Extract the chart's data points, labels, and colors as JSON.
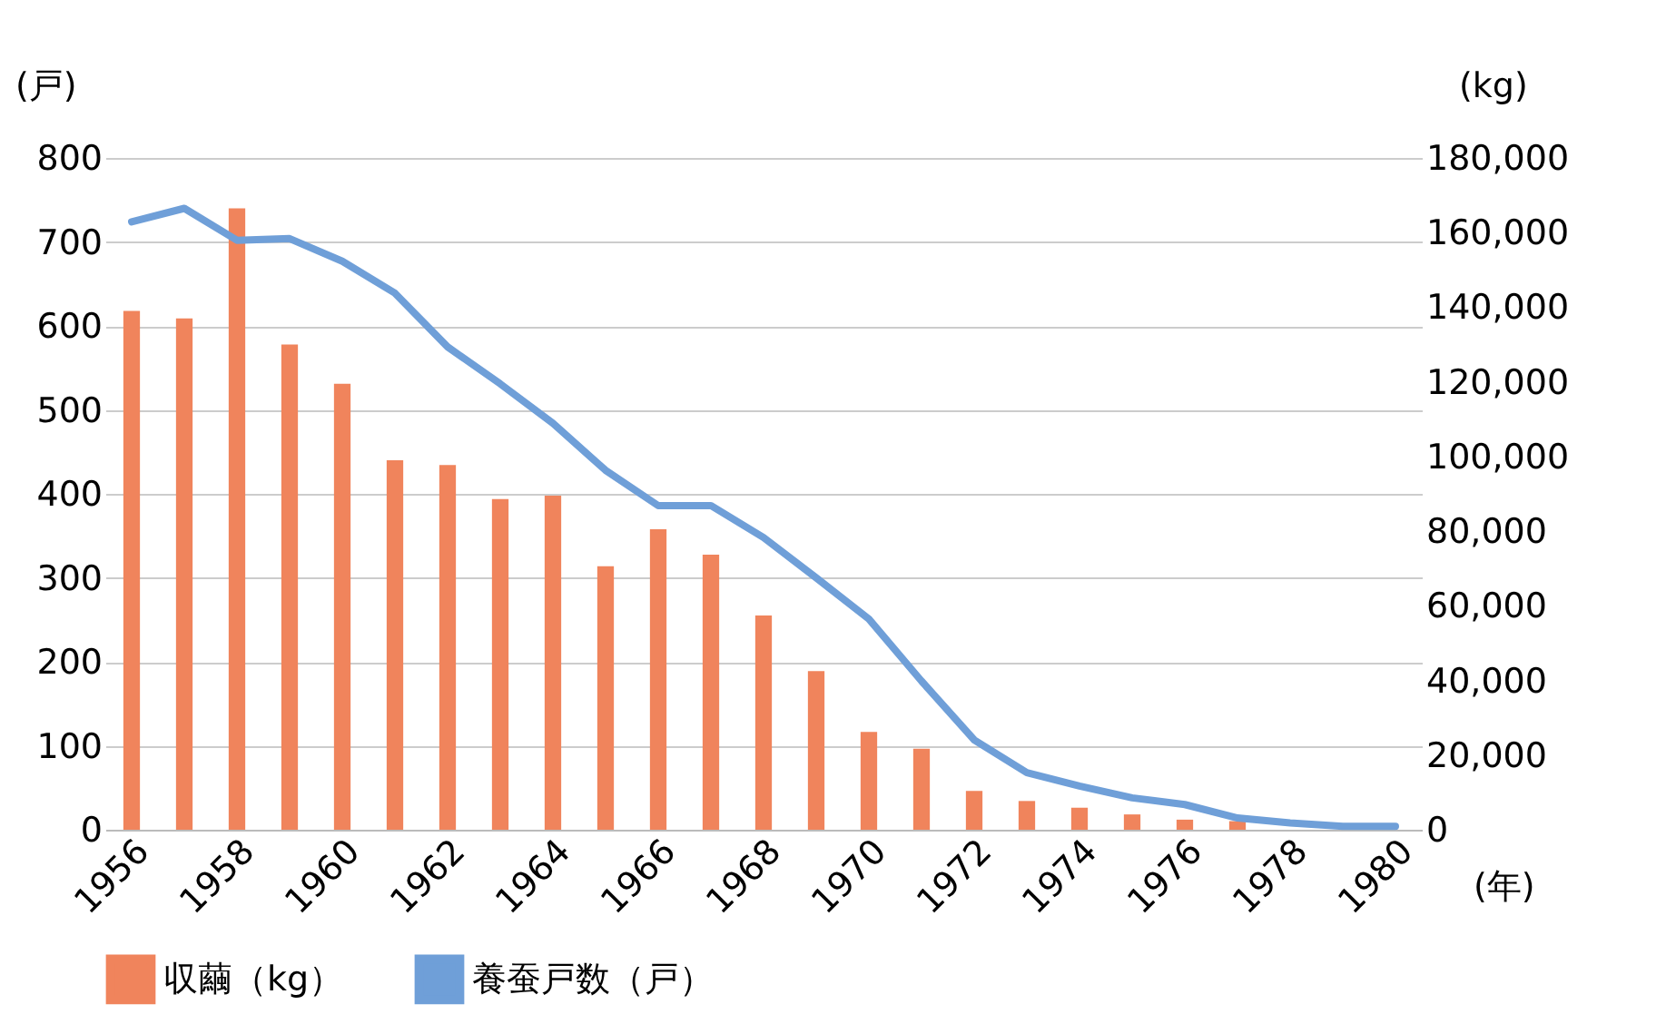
{
  "chart_data": {
    "type": "bar",
    "xlabel": "(年)",
    "ylabel": "(戸)",
    "y2label": "(kg)",
    "categories": [
      "1956",
      null,
      "1958",
      null,
      "1960",
      null,
      "1962",
      null,
      "1964",
      null,
      "1966",
      null,
      "1968",
      null,
      "1970",
      null,
      "1972",
      null,
      "1974",
      null,
      "1976",
      null,
      "1978",
      null,
      "1980"
    ],
    "series": [
      {
        "name": "収繭（kg）",
        "axis": "y2",
        "color": "#f0845c",
        "values": [
          139000,
          137000,
          166500,
          130000,
          119500,
          99000,
          97700,
          88600,
          89500,
          70600,
          80500,
          73700,
          57400,
          42500,
          26200,
          21700,
          10400,
          7700,
          5900,
          4100,
          2700,
          2300,
          null,
          null,
          null
        ]
      },
      {
        "name": "養蚕戸数（戸）",
        "type": "line",
        "axis": "y",
        "color": "#6f9fd8",
        "values": [
          724,
          740,
          702,
          704,
          677,
          639,
          575,
          531,
          484,
          428,
          386,
          386,
          348,
          300,
          251,
          177,
          107,
          68,
          52,
          38,
          30,
          14,
          8,
          4,
          4
        ]
      }
    ],
    "ylim": [
      0,
      800
    ],
    "yticks": [
      0,
      100,
      200,
      300,
      400,
      500,
      600,
      700,
      800
    ],
    "y2lim": [
      0,
      180000
    ],
    "y2ticks": [
      0,
      {
        "value": 20000,
        "label": "20,000"
      },
      {
        "value": 40000,
        "label": "40,000"
      },
      {
        "value": 60000,
        "label": "60,000"
      },
      {
        "value": 80000,
        "label": "80,000"
      },
      {
        "value": 100000,
        "label": "100,000"
      },
      {
        "value": 120000,
        "label": "120,000"
      },
      {
        "value": 140000,
        "label": "140,000"
      },
      {
        "value": 160000,
        "label": "160,000"
      },
      {
        "value": 180000,
        "label": "180,000"
      }
    ],
    "grid": "y",
    "legend": "bottom"
  }
}
